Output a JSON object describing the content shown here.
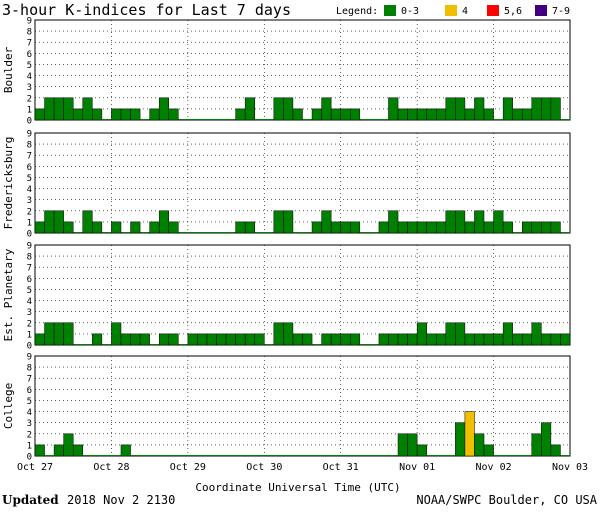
{
  "title": "3-hour K-indices for Last 7 days",
  "legend": {
    "label": "Legend:",
    "items": [
      {
        "label": "0-3",
        "color": "#008000"
      },
      {
        "label": "4",
        "color": "#f0c000"
      },
      {
        "label": "5,6",
        "color": "#ff0000"
      },
      {
        "label": "7-9",
        "color": "#400080"
      }
    ]
  },
  "footer": {
    "updated_word": "Updated",
    "updated_value": "2018 Nov  2 2130",
    "source": "NOAA/SWPC Boulder, CO USA"
  },
  "chart_data": {
    "type": "bar",
    "xlabel": "Coordinate Universal Time (UTC)",
    "x_ticks": [
      "Oct 27",
      "Oct 28",
      "Oct 29",
      "Oct 30",
      "Oct 31",
      "Nov 01",
      "Nov 02",
      "Nov 03"
    ],
    "y_ticks": [
      0,
      1,
      2,
      3,
      4,
      5,
      6,
      7,
      8,
      9
    ],
    "ylim": [
      0,
      9
    ],
    "interval_hours": 3,
    "series": [
      {
        "name": "Boulder",
        "values": [
          1,
          2,
          2,
          2,
          1,
          2,
          1,
          0,
          1,
          1,
          1,
          0,
          1,
          2,
          1,
          0,
          0,
          0,
          0,
          0,
          0,
          1,
          2,
          0,
          0,
          2,
          2,
          1,
          0,
          1,
          2,
          1,
          1,
          1,
          0,
          0,
          0,
          2,
          1,
          1,
          1,
          1,
          1,
          2,
          2,
          1,
          2,
          1,
          0,
          2,
          1,
          1,
          2,
          2,
          2,
          0,
          0
        ]
      },
      {
        "name": "Fredericksburg",
        "values": [
          1,
          2,
          2,
          1,
          0,
          2,
          1,
          0,
          1,
          0,
          1,
          0,
          1,
          2,
          1,
          0,
          0,
          0,
          0,
          0,
          0,
          1,
          1,
          0,
          0,
          2,
          2,
          0,
          0,
          1,
          2,
          1,
          1,
          1,
          0,
          0,
          1,
          2,
          1,
          1,
          1,
          1,
          1,
          2,
          2,
          1,
          2,
          1,
          2,
          1,
          0,
          1,
          1,
          1,
          1,
          0,
          0
        ]
      },
      {
        "name": "Est. Planetary",
        "values": [
          1,
          2,
          2,
          2,
          0,
          0,
          1,
          0,
          2,
          1,
          1,
          1,
          0,
          1,
          1,
          0,
          1,
          1,
          1,
          1,
          1,
          1,
          1,
          1,
          0,
          2,
          2,
          1,
          1,
          0,
          1,
          1,
          1,
          1,
          0,
          0,
          1,
          1,
          1,
          1,
          2,
          1,
          1,
          2,
          2,
          1,
          1,
          1,
          1,
          2,
          1,
          1,
          2,
          1,
          1,
          1,
          0
        ]
      },
      {
        "name": "College",
        "values": [
          1,
          0,
          1,
          2,
          1,
          0,
          0,
          0,
          0,
          1,
          0,
          0,
          0,
          0,
          0,
          0,
          0,
          0,
          0,
          0,
          0,
          0,
          0,
          0,
          0,
          0,
          0,
          0,
          0,
          0,
          0,
          0,
          0,
          0,
          0,
          0,
          0,
          0,
          2,
          2,
          1,
          0,
          0,
          0,
          3,
          4,
          2,
          1,
          0,
          0,
          0,
          0,
          2,
          3,
          1,
          0,
          0
        ]
      }
    ]
  }
}
